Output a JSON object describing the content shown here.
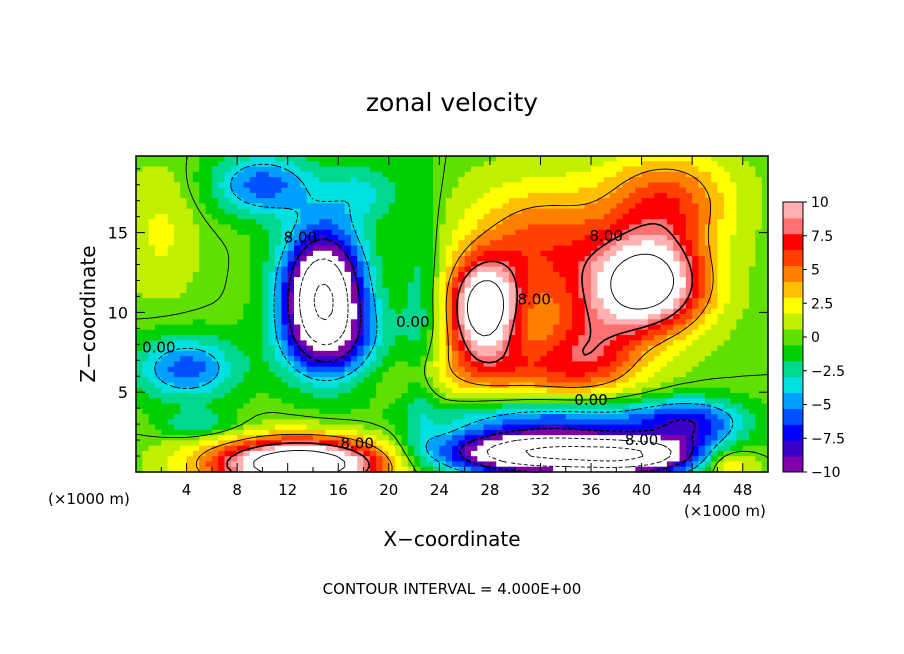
{
  "chart_data": {
    "type": "heatmap",
    "title": "zonal velocity",
    "xlabel": "X−coordinate",
    "ylabel": "Z−coordinate",
    "x_unit_left": "(×1000 m)",
    "x_unit_right": "(×1000 m)",
    "footer": "CONTOUR INTERVAL = 4.000E+00",
    "xlim": [
      0,
      50
    ],
    "ylim": [
      0,
      19.8
    ],
    "x_ticks": [
      "4",
      "8",
      "12",
      "16",
      "20",
      "24",
      "28",
      "32",
      "36",
      "40",
      "44",
      "48"
    ],
    "x_tick_values": [
      4,
      8,
      12,
      16,
      20,
      24,
      28,
      32,
      36,
      40,
      44,
      48
    ],
    "y_ticks": [
      "5",
      "10",
      "15"
    ],
    "y_tick_values": [
      5,
      10,
      15
    ],
    "colorbar": {
      "range": [
        -10,
        10
      ],
      "tick_labels": [
        "10",
        "7.5",
        "5",
        "2.5",
        "0",
        "−2.5",
        "−5",
        "−7.5",
        "−10"
      ],
      "tick_values": [
        10,
        7.5,
        5,
        2.5,
        0,
        -2.5,
        -5,
        -7.5,
        -10
      ],
      "colors": [
        "#7f00a8",
        "#3a00c8",
        "#0000ff",
        "#0050ff",
        "#00a0ff",
        "#00e0e0",
        "#00d890",
        "#00d000",
        "#60e000",
        "#c0f000",
        "#ffff00",
        "#ffc000",
        "#ff8000",
        "#ff4000",
        "#ff0000",
        "#ff7070",
        "#ffb0b0"
      ]
    },
    "contour_interval": 4.0,
    "contour_labels": [
      {
        "text": "0.00",
        "x": 1.8,
        "z": 7.8
      },
      {
        "text": "8.00",
        "x": 13.0,
        "z": 14.7
      },
      {
        "text": "0.00",
        "x": 21.9,
        "z": 9.4
      },
      {
        "text": "8.00",
        "x": 31.5,
        "z": 10.8
      },
      {
        "text": "8.00",
        "x": 37.2,
        "z": 14.8
      },
      {
        "text": "0.00",
        "x": 36.0,
        "z": 4.5
      },
      {
        "text": "8.00",
        "x": 17.5,
        "z": 1.8
      },
      {
        "text": "8.00",
        "x": 40.0,
        "z": 2.0
      }
    ],
    "features": [
      {
        "x": 14.8,
        "z": 11.2,
        "sx": 3.2,
        "sz": 4.0,
        "amp": -16.0
      },
      {
        "x": 16.0,
        "z": 8.0,
        "sx": 4.5,
        "sz": 2.5,
        "amp": -4.0
      },
      {
        "x": 10.0,
        "z": 18.0,
        "sx": 4.0,
        "sz": 2.0,
        "amp": -6.0
      },
      {
        "x": 18.0,
        "z": 17.5,
        "sx": 3.0,
        "sz": 2.0,
        "amp": -3.0
      },
      {
        "x": 4.0,
        "z": 6.5,
        "sx": 4.0,
        "sz": 2.0,
        "amp": -6.0
      },
      {
        "x": 5.0,
        "z": 3.0,
        "sx": 3.0,
        "sz": 0.8,
        "amp": -3.0
      },
      {
        "x": 2.0,
        "z": 15.0,
        "sx": 3.0,
        "sz": 4.0,
        "amp": 2.0
      },
      {
        "x": 40.5,
        "z": 11.8,
        "sx": 4.5,
        "sz": 3.0,
        "amp": 14.0
      },
      {
        "x": 27.5,
        "z": 10.2,
        "sx": 2.6,
        "sz": 2.8,
        "amp": 14.0
      },
      {
        "x": 32.0,
        "z": 14.0,
        "sx": 6.0,
        "sz": 4.0,
        "amp": 6.0
      },
      {
        "x": 42.0,
        "z": 17.0,
        "sx": 5.0,
        "sz": 3.0,
        "amp": 6.0
      },
      {
        "x": 30.0,
        "z": 6.5,
        "sx": 8.0,
        "sz": 2.0,
        "amp": 5.0
      },
      {
        "x": 36.0,
        "z": 8.0,
        "sx": 4.0,
        "sz": 3.0,
        "amp": 5.0
      },
      {
        "x": 13.0,
        "z": 0.5,
        "sx": 7.0,
        "sz": 1.6,
        "amp": 16.0
      },
      {
        "x": 32.0,
        "z": 1.2,
        "sx": 8.0,
        "sz": 1.4,
        "amp": -16.0
      },
      {
        "x": 40.0,
        "z": 1.0,
        "sx": 5.0,
        "sz": 1.2,
        "amp": -10.0
      },
      {
        "x": 34.0,
        "z": 3.5,
        "sx": 10.0,
        "sz": 1.2,
        "amp": -5.0
      },
      {
        "x": 44.0,
        "z": 3.0,
        "sx": 4.0,
        "sz": 1.5,
        "amp": -6.0
      },
      {
        "x": 22.5,
        "z": 10.0,
        "sx": 1.5,
        "sz": 10.0,
        "amp": -2.5
      },
      {
        "x": 47.0,
        "z": 0.5,
        "sx": 2.0,
        "sz": 1.0,
        "amp": 4.0
      }
    ]
  }
}
